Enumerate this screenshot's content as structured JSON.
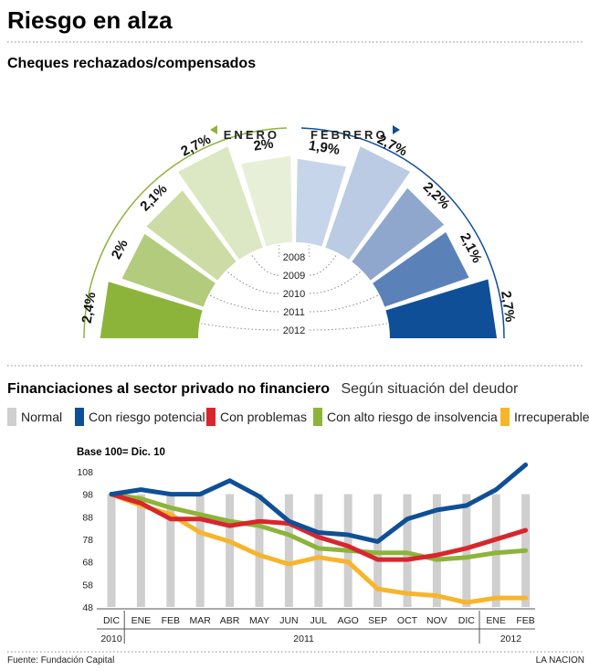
{
  "header": {
    "title": "Riesgo en alza",
    "section1_title": "Cheques rechazados/compensados",
    "section2_title": "Financiaciones al sector privado no financiero",
    "section2_subtitle": "Según situación del deudor"
  },
  "footer": {
    "source": "Fuente: Fundación Capital",
    "brand": "LA NACION"
  },
  "chart_data": [
    {
      "type": "bar",
      "layout": "semicircular",
      "title": "Cheques rechazados/compensados",
      "groups": [
        {
          "name": "ENERO",
          "labels": [
            "2,4%",
            "2%",
            "2,1%",
            "2,7%",
            "2%"
          ],
          "values": [
            2.4,
            2.0,
            2.1,
            2.7,
            2.0
          ],
          "colors": [
            "#8db43a",
            "#b3cb7d",
            "#ccdca4",
            "#dce7c3",
            "#e8efd9"
          ]
        },
        {
          "name": "FEBRERO",
          "labels": [
            "2,7%",
            "2,1%",
            "2,2%",
            "2,7%",
            "1,9%"
          ],
          "values": [
            2.7,
            2.1,
            2.2,
            2.7,
            1.9
          ],
          "colors": [
            "#0f4f97",
            "#5a82b8",
            "#8fa7cc",
            "#bacbe3",
            "#c7d5ea"
          ]
        }
      ],
      "categories": [
        "2012",
        "2011",
        "2010",
        "2009",
        "2008"
      ]
    },
    {
      "type": "line",
      "title": "Financiaciones al sector privado no financiero",
      "subtitle": "Según situación del deudor",
      "note": "Base 100= Dic. 10",
      "x": [
        "DIC",
        "ENE",
        "FEB",
        "MAR",
        "ABR",
        "MAY",
        "JUN",
        "JUL",
        "AGO",
        "SEP",
        "OCT",
        "NOV",
        "DIC",
        "ENE",
        "FEB"
      ],
      "year_labels": [
        {
          "label": "2010",
          "from": 0,
          "to": 0
        },
        {
          "label": "2011",
          "from": 1,
          "to": 12
        },
        {
          "label": "2012",
          "from": 13,
          "to": 14
        }
      ],
      "ylim": [
        48,
        112
      ],
      "yticks": [
        48,
        58,
        68,
        78,
        88,
        98,
        108
      ],
      "series": [
        {
          "name": "Normal",
          "type": "bar",
          "color": "#cfcfcf",
          "values": [
            98,
            98,
            98,
            98,
            98,
            98,
            98,
            98,
            98,
            98,
            98,
            98,
            98,
            98,
            98
          ]
        },
        {
          "name": "Con riesgo potencial",
          "color": "#0f4f97",
          "values": [
            98,
            100,
            98,
            98,
            104,
            97,
            86,
            81,
            80,
            77,
            87,
            91,
            93,
            100,
            111
          ]
        },
        {
          "name": "Con problemas",
          "color": "#d8262d",
          "values": [
            98,
            94,
            87,
            87,
            84,
            86,
            85,
            79,
            75,
            69,
            69,
            71,
            74,
            78,
            82
          ]
        },
        {
          "name": "Con alto riesgo de insolvencia",
          "color": "#8db43a",
          "values": [
            98,
            96,
            92,
            89,
            86,
            84,
            80,
            74,
            73,
            72,
            72,
            69,
            70,
            72,
            73
          ]
        },
        {
          "name": "Irrecuperable",
          "color": "#f7b52c",
          "values": [
            98,
            93,
            89,
            81,
            77,
            71,
            67,
            70,
            68,
            56,
            54,
            53,
            50,
            52,
            52
          ]
        }
      ]
    }
  ]
}
